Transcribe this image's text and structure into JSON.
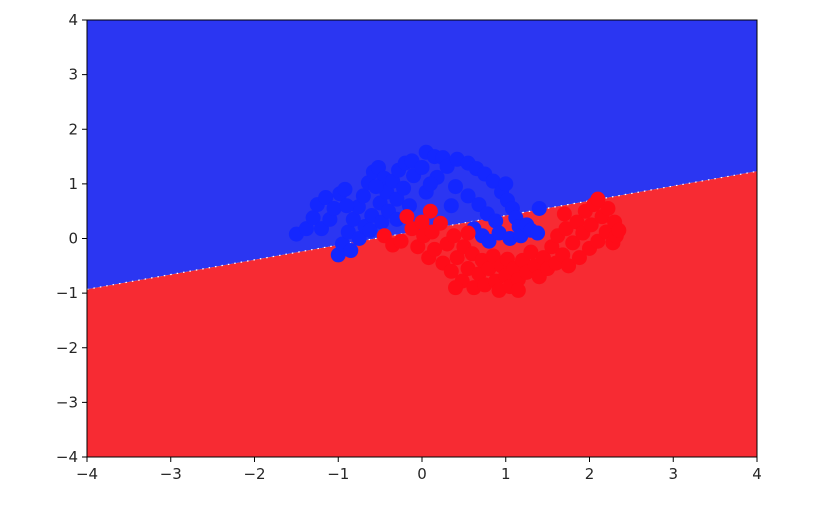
{
  "chart_data": {
    "type": "scatter",
    "title": "",
    "xlabel": "",
    "ylabel": "",
    "xlim": [
      -4,
      4
    ],
    "ylim": [
      -4,
      4
    ],
    "x_ticks": [
      -4,
      -3,
      -2,
      -1,
      0,
      1,
      2,
      3,
      4
    ],
    "y_ticks": [
      -4,
      -3,
      -2,
      -1,
      0,
      1,
      2,
      3,
      4
    ],
    "x_tick_labels": [
      "−4",
      "−3",
      "−2",
      "−1",
      "0",
      "1",
      "2",
      "3",
      "4"
    ],
    "y_tick_labels": [
      "−4",
      "−3",
      "−2",
      "−1",
      "0",
      "1",
      "2",
      "3",
      "4"
    ],
    "grid": false,
    "decision_boundary": {
      "kind": "linear",
      "points": [
        [
          -4,
          -0.93
        ],
        [
          4,
          1.23
        ]
      ],
      "region_above_color": "#2b36f2",
      "region_below_color": "#f72b33"
    },
    "series": [
      {
        "color": "#1427ff",
        "points": [
          [
            -1.5,
            0.08
          ],
          [
            -1.38,
            0.18
          ],
          [
            -1.3,
            0.38
          ],
          [
            -1.25,
            0.62
          ],
          [
            -1.15,
            0.75
          ],
          [
            -1.2,
            0.18
          ],
          [
            -1.1,
            0.35
          ],
          [
            -1.05,
            0.55
          ],
          [
            -0.98,
            0.82
          ],
          [
            -0.92,
            0.9
          ],
          [
            -1.0,
            -0.3
          ],
          [
            -0.95,
            -0.1
          ],
          [
            -0.88,
            0.12
          ],
          [
            -0.82,
            0.35
          ],
          [
            -0.76,
            0.58
          ],
          [
            -0.7,
            0.78
          ],
          [
            -0.64,
            1.02
          ],
          [
            -0.58,
            1.22
          ],
          [
            -0.52,
            1.3
          ],
          [
            -0.45,
            1.1
          ],
          [
            -0.85,
            -0.22
          ],
          [
            -0.75,
            0.0
          ],
          [
            -0.68,
            0.22
          ],
          [
            -0.6,
            0.42
          ],
          [
            -0.5,
            0.65
          ],
          [
            -0.42,
            0.85
          ],
          [
            -0.35,
            1.05
          ],
          [
            -0.28,
            1.25
          ],
          [
            -0.2,
            1.38
          ],
          [
            -0.12,
            1.42
          ],
          [
            -0.62,
            0.15
          ],
          [
            -0.48,
            0.3
          ],
          [
            -0.4,
            0.5
          ],
          [
            -0.3,
            0.72
          ],
          [
            -0.22,
            0.92
          ],
          [
            -0.1,
            1.15
          ],
          [
            0.0,
            1.3
          ],
          [
            0.05,
            1.58
          ],
          [
            0.15,
            1.5
          ],
          [
            0.25,
            1.48
          ],
          [
            -0.3,
            0.35
          ],
          [
            -0.15,
            0.6
          ],
          [
            0.05,
            0.85
          ],
          [
            0.18,
            1.12
          ],
          [
            0.3,
            1.32
          ],
          [
            0.42,
            1.45
          ],
          [
            0.55,
            1.38
          ],
          [
            0.65,
            1.28
          ],
          [
            0.75,
            1.18
          ],
          [
            0.85,
            1.05
          ],
          [
            0.4,
            0.95
          ],
          [
            0.55,
            0.78
          ],
          [
            0.68,
            0.62
          ],
          [
            0.78,
            0.45
          ],
          [
            0.88,
            0.32
          ],
          [
            0.95,
            0.85
          ],
          [
            1.02,
            0.7
          ],
          [
            1.08,
            0.55
          ],
          [
            1.12,
            0.38
          ],
          [
            1.16,
            0.22
          ],
          [
            0.62,
            0.18
          ],
          [
            0.72,
            0.05
          ],
          [
            0.8,
            -0.05
          ],
          [
            0.92,
            0.1
          ],
          [
            1.05,
            0.0
          ],
          [
            1.18,
            0.05
          ],
          [
            1.25,
            0.25
          ],
          [
            1.3,
            0.15
          ],
          [
            1.38,
            0.1
          ],
          [
            1.4,
            0.55
          ],
          [
            -0.9,
            0.6
          ],
          [
            -0.55,
            0.95
          ],
          [
            0.1,
            1.0
          ],
          [
            0.35,
            0.6
          ],
          [
            1.0,
            1.0
          ]
        ]
      },
      {
        "color": "#ff0c19",
        "points": [
          [
            -0.45,
            0.05
          ],
          [
            -0.35,
            -0.12
          ],
          [
            -0.25,
            -0.05
          ],
          [
            -0.18,
            0.4
          ],
          [
            -0.12,
            0.18
          ],
          [
            -0.05,
            -0.15
          ],
          [
            0.0,
            0.3
          ],
          [
            0.02,
            0.05
          ],
          [
            0.08,
            -0.35
          ],
          [
            0.12,
            0.12
          ],
          [
            0.15,
            -0.2
          ],
          [
            0.22,
            0.28
          ],
          [
            0.25,
            -0.45
          ],
          [
            0.3,
            -0.1
          ],
          [
            0.35,
            -0.6
          ],
          [
            0.38,
            0.05
          ],
          [
            0.42,
            -0.35
          ],
          [
            0.48,
            -0.78
          ],
          [
            0.5,
            -0.15
          ],
          [
            0.55,
            -0.55
          ],
          [
            0.6,
            -0.28
          ],
          [
            0.62,
            -0.9
          ],
          [
            0.68,
            -0.65
          ],
          [
            0.72,
            -0.4
          ],
          [
            0.75,
            -0.85
          ],
          [
            0.8,
            -0.55
          ],
          [
            0.85,
            -0.32
          ],
          [
            0.88,
            -0.78
          ],
          [
            0.92,
            -0.95
          ],
          [
            0.95,
            -0.5
          ],
          [
            1.0,
            -0.68
          ],
          [
            1.02,
            -0.38
          ],
          [
            1.05,
            -0.88
          ],
          [
            1.1,
            -0.55
          ],
          [
            1.15,
            -0.75
          ],
          [
            1.2,
            -0.4
          ],
          [
            1.25,
            -0.62
          ],
          [
            1.3,
            -0.25
          ],
          [
            1.35,
            -0.5
          ],
          [
            1.4,
            -0.7
          ],
          [
            1.45,
            -0.35
          ],
          [
            1.5,
            -0.55
          ],
          [
            1.55,
            -0.15
          ],
          [
            1.6,
            -0.45
          ],
          [
            1.62,
            0.05
          ],
          [
            1.68,
            -0.3
          ],
          [
            1.72,
            0.18
          ],
          [
            1.75,
            -0.5
          ],
          [
            1.8,
            -0.08
          ],
          [
            1.85,
            0.3
          ],
          [
            1.88,
            -0.35
          ],
          [
            1.92,
            0.1
          ],
          [
            1.95,
            0.5
          ],
          [
            2.0,
            -0.18
          ],
          [
            2.02,
            0.25
          ],
          [
            2.05,
            0.62
          ],
          [
            2.1,
            -0.05
          ],
          [
            2.15,
            0.4
          ],
          [
            2.2,
            0.12
          ],
          [
            2.22,
            0.55
          ],
          [
            2.28,
            -0.08
          ],
          [
            2.3,
            0.3
          ],
          [
            2.32,
            0.05
          ],
          [
            2.35,
            0.15
          ],
          [
            1.15,
            -0.95
          ],
          [
            0.4,
            -0.9
          ],
          [
            0.55,
            0.1
          ],
          [
            0.1,
            0.5
          ],
          [
            1.7,
            0.45
          ],
          [
            2.1,
            0.72
          ]
        ]
      }
    ]
  }
}
